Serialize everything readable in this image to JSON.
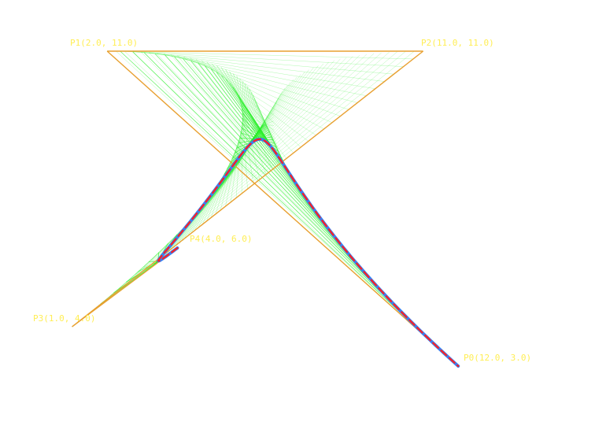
{
  "points": [
    {
      "id": "p0",
      "label": "P0(12.0, 3.0)",
      "x": 12.0,
      "y": 3.0
    },
    {
      "id": "p1",
      "label": "P1(2.0, 11.0)",
      "x": 2.0,
      "y": 11.0
    },
    {
      "id": "p2",
      "label": "P2(11.0, 11.0)",
      "x": 11.0,
      "y": 11.0
    },
    {
      "id": "p3",
      "label": "P3(1.0, 4.0)",
      "x": 1.0,
      "y": 4.0
    },
    {
      "id": "p4",
      "label": "P4(4.0, 6.0)",
      "x": 4.0,
      "y": 6.0
    }
  ],
  "colors": {
    "control_polygon": "#e8a030",
    "construction_lines": "#22ee22",
    "curve_main": "#3a7ff0",
    "curve_overlay": "#ff2020",
    "labels": "#ffee55"
  }
}
